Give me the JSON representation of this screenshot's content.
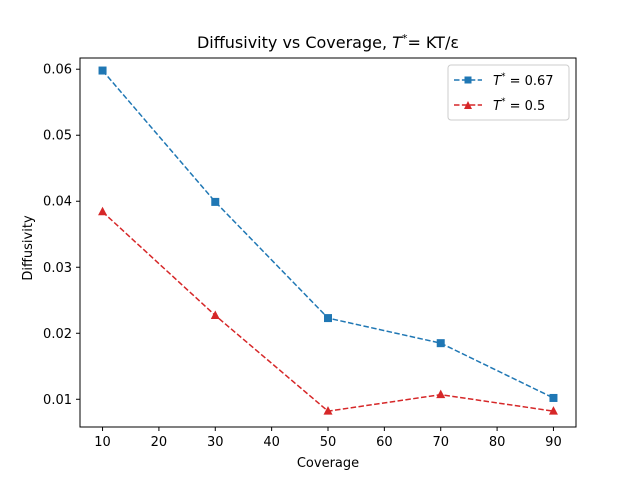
{
  "chart_data": {
    "type": "line",
    "title": {
      "prefix": "Diffusivity vs Coverage, ",
      "var": "T",
      "sup": "*",
      "suffix": "= KT/ε"
    },
    "xlabel": "Coverage",
    "ylabel": "Diffusivity",
    "xlim": [
      6,
      94
    ],
    "ylim": [
      0.0058,
      0.0617
    ],
    "xticks": [
      10,
      20,
      30,
      40,
      50,
      60,
      70,
      80,
      90
    ],
    "yticks": [
      0.01,
      0.02,
      0.03,
      0.04,
      0.05,
      0.06
    ],
    "ytick_labels": [
      "0.01",
      "0.02",
      "0.03",
      "0.04",
      "0.05",
      "0.06"
    ],
    "x": [
      10,
      30,
      50,
      70,
      90
    ],
    "grid": false,
    "legend_position": "top-right",
    "series": [
      {
        "name": "T* = 0.67",
        "legend": {
          "var": "T",
          "sup": "*",
          "rest": " = 0.67"
        },
        "values": [
          0.0598,
          0.0399,
          0.0223,
          0.0185,
          0.0102
        ],
        "color": "#1f77b4",
        "marker": "square",
        "linestyle": "dashed"
      },
      {
        "name": "T* = 0.5",
        "legend": {
          "var": "T",
          "sup": "*",
          "rest": " = 0.5"
        },
        "values": [
          0.0384,
          0.0227,
          0.0082,
          0.0107,
          0.0082
        ],
        "color": "#d62728",
        "marker": "triangle",
        "linestyle": "dashed"
      }
    ]
  }
}
